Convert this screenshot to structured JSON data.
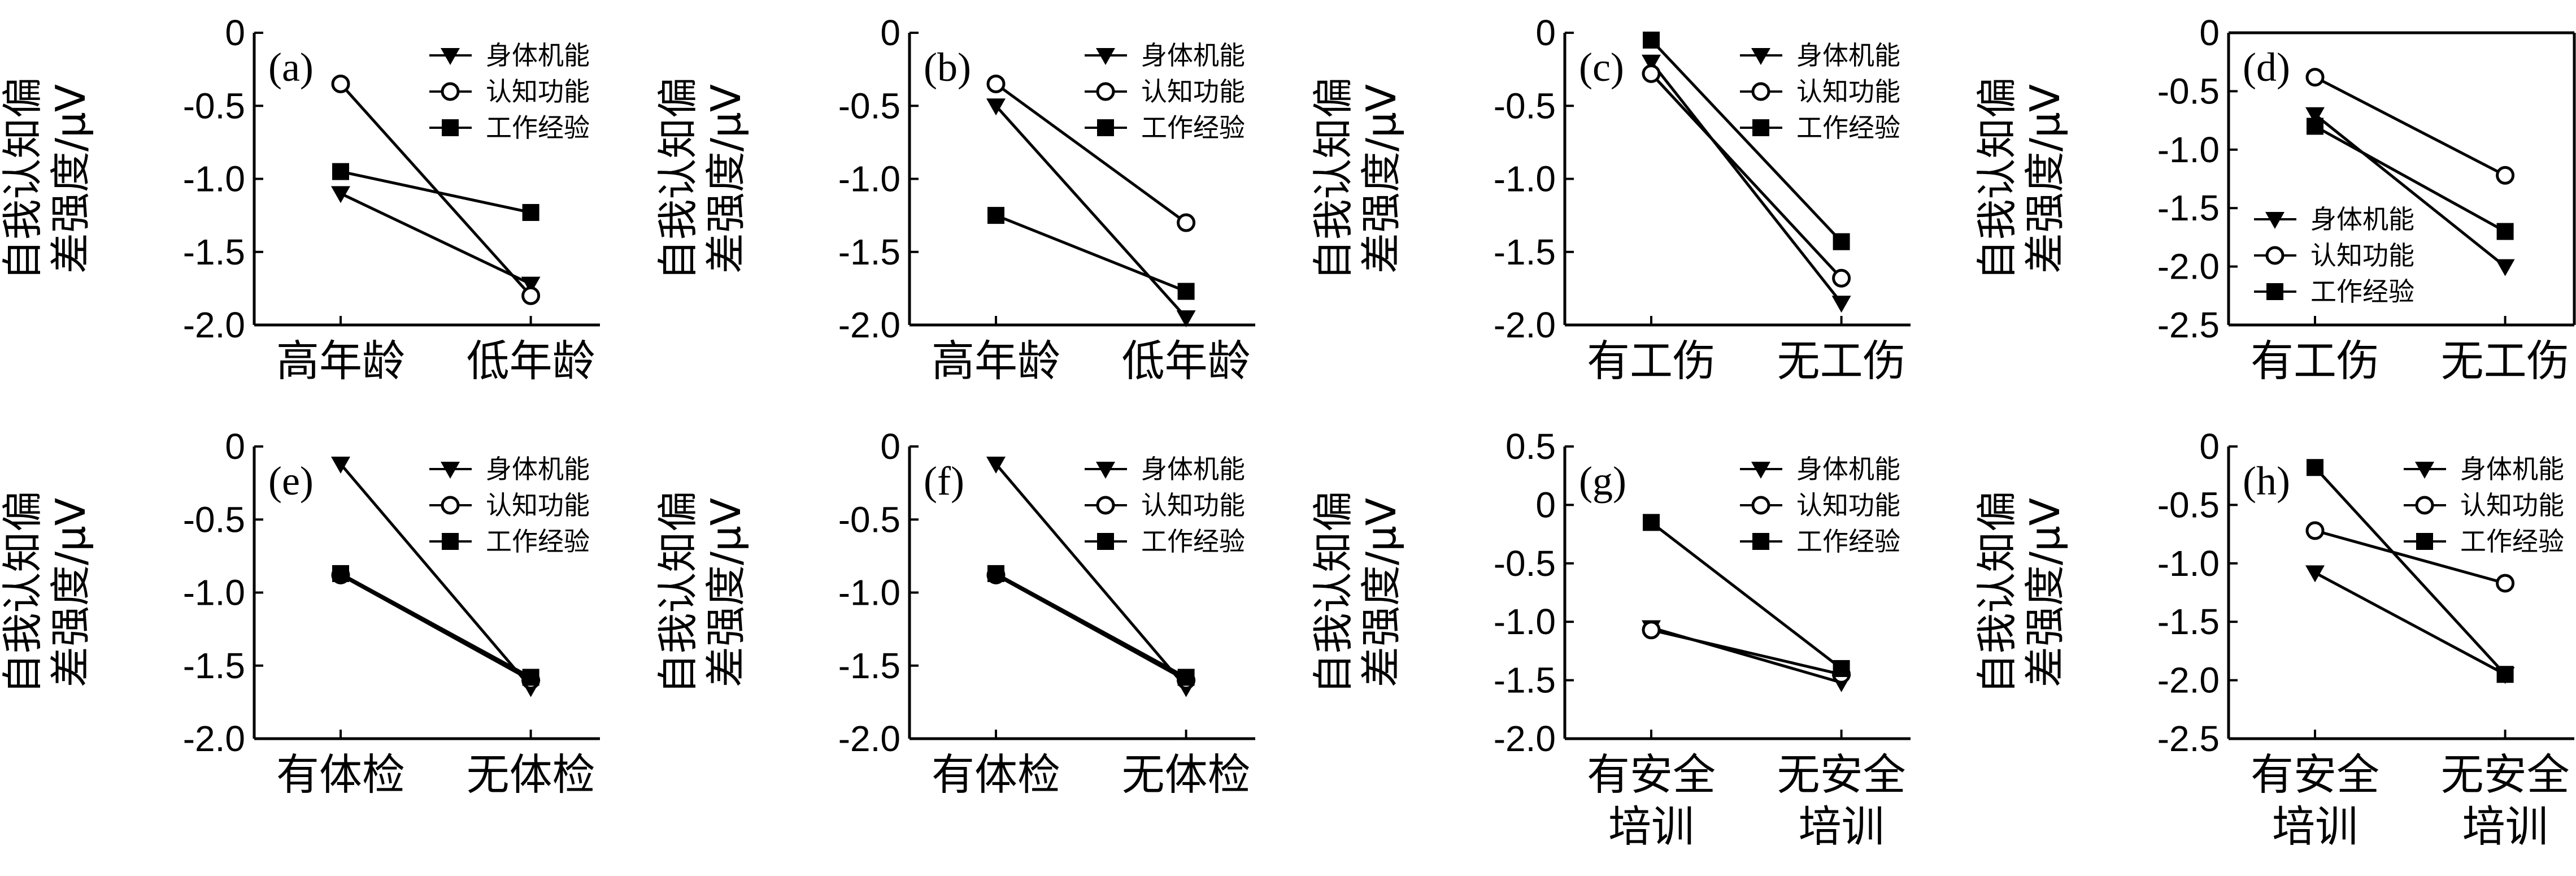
{
  "legend": {
    "s1": "身体机能",
    "s2": "认知功能",
    "s3": "工作经验"
  },
  "ylabel_line1": "自我认知偏",
  "ylabel_line2": "差强度/μV",
  "chart_data": [
    {
      "type": "line",
      "label": "(a)",
      "categories": [
        "高年龄",
        "低年龄"
      ],
      "ylim": [
        -2.0,
        0
      ],
      "ticks": [
        "0",
        "-0.5",
        "-1.0",
        "-1.5",
        "-2.0"
      ],
      "tick_values": [
        0,
        -0.5,
        -1.0,
        -1.5,
        -2.0
      ],
      "legend_position": "top-right",
      "series": [
        {
          "name": "身体机能",
          "values": [
            -1.1,
            -1.72
          ]
        },
        {
          "name": "认知功能",
          "values": [
            -0.35,
            -1.8
          ]
        },
        {
          "name": "工作经验",
          "values": [
            -0.95,
            -1.23
          ]
        }
      ]
    },
    {
      "type": "line",
      "label": "(b)",
      "categories": [
        "高年龄",
        "低年龄"
      ],
      "ylim": [
        -2.0,
        0
      ],
      "ticks": [
        "0",
        "-0.5",
        "-1.0",
        "-1.5",
        "-2.0"
      ],
      "tick_values": [
        0,
        -0.5,
        -1.0,
        -1.5,
        -2.0
      ],
      "legend_position": "top-right",
      "series": [
        {
          "name": "身体机能",
          "values": [
            -0.5,
            -1.95
          ]
        },
        {
          "name": "认知功能",
          "values": [
            -0.35,
            -1.3
          ]
        },
        {
          "name": "工作经验",
          "values": [
            -1.25,
            -1.77
          ]
        }
      ]
    },
    {
      "type": "line",
      "label": "(c)",
      "categories": [
        "有工伤",
        "无工伤"
      ],
      "ylim": [
        -2.0,
        0
      ],
      "ticks": [
        "0",
        "-0.5",
        "-1.0",
        "-1.5",
        "-2.0"
      ],
      "tick_values": [
        0,
        -0.5,
        -1.0,
        -1.5,
        -2.0
      ],
      "legend_position": "top-right",
      "series": [
        {
          "name": "身体机能",
          "values": [
            -0.2,
            -1.85
          ]
        },
        {
          "name": "认知功能",
          "values": [
            -0.28,
            -1.68
          ]
        },
        {
          "name": "工作经验",
          "values": [
            -0.05,
            -1.43
          ]
        }
      ]
    },
    {
      "type": "line",
      "label": "(d)",
      "categories": [
        "有工伤",
        "无工伤"
      ],
      "ylim": [
        -2.5,
        0
      ],
      "ticks": [
        "0",
        "-0.5",
        "-1.0",
        "-1.5",
        "-2.0",
        "-2.5"
      ],
      "tick_values": [
        0,
        -0.5,
        -1.0,
        -1.5,
        -2.0,
        -2.5
      ],
      "legend_position": "bottom-left",
      "series": [
        {
          "name": "身体机能",
          "values": [
            -0.7,
            -2.0
          ]
        },
        {
          "name": "认知功能",
          "values": [
            -0.38,
            -1.22
          ]
        },
        {
          "name": "工作经验",
          "values": [
            -0.8,
            -1.7
          ]
        }
      ]
    },
    {
      "type": "line",
      "label": "(e)",
      "categories": [
        "有体检",
        "无体检"
      ],
      "ylim": [
        -2.0,
        0
      ],
      "ticks": [
        "0",
        "-0.5",
        "-1.0",
        "-1.5",
        "-2.0"
      ],
      "tick_values": [
        0,
        -0.5,
        -1.0,
        -1.5,
        -2.0
      ],
      "legend_position": "top-right",
      "series": [
        {
          "name": "身体机能",
          "values": [
            -0.12,
            -1.65
          ]
        },
        {
          "name": "认知功能",
          "values": [
            -0.88,
            -1.6
          ]
        },
        {
          "name": "工作经验",
          "values": [
            -0.87,
            -1.58
          ]
        }
      ]
    },
    {
      "type": "line",
      "label": "(f)",
      "categories": [
        "有体检",
        "无体检"
      ],
      "ylim": [
        -2.0,
        0
      ],
      "ticks": [
        "0",
        "-0.5",
        "-1.0",
        "-1.5",
        "-2.0"
      ],
      "tick_values": [
        0,
        -0.5,
        -1.0,
        -1.5,
        -2.0
      ],
      "legend_position": "top-right",
      "series": [
        {
          "name": "身体机能",
          "values": [
            -0.12,
            -1.65
          ]
        },
        {
          "name": "认知功能",
          "values": [
            -0.88,
            -1.6
          ]
        },
        {
          "name": "工作经验",
          "values": [
            -0.87,
            -1.58
          ]
        }
      ]
    },
    {
      "type": "line",
      "label": "(g)",
      "categories": [
        "有安全\n培训",
        "无安全\n培训"
      ],
      "ylim": [
        -2.0,
        0.5
      ],
      "ticks": [
        "0.5",
        "0",
        "-0.5",
        "-1.0",
        "-1.5",
        "-2.0"
      ],
      "tick_values": [
        0.5,
        0,
        -0.5,
        -1.0,
        -1.5,
        -2.0
      ],
      "legend_position": "top-right",
      "series": [
        {
          "name": "身体机能",
          "values": [
            -1.05,
            -1.52
          ]
        },
        {
          "name": "认知功能",
          "values": [
            -1.07,
            -1.45
          ]
        },
        {
          "name": "工作经验",
          "values": [
            -0.15,
            -1.4
          ]
        }
      ]
    },
    {
      "type": "line",
      "label": "(h)",
      "categories": [
        "有安全\n培训",
        "无安全\n培训"
      ],
      "ylim": [
        -2.5,
        0
      ],
      "ticks": [
        "0",
        "-0.5",
        "-1.0",
        "-1.5",
        "-2.0",
        "-2.5"
      ],
      "tick_values": [
        0,
        -0.5,
        -1.0,
        -1.5,
        -2.0,
        -2.5
      ],
      "legend_position": "top-right",
      "series": [
        {
          "name": "身体机能",
          "values": [
            -1.08,
            -1.95
          ]
        },
        {
          "name": "认知功能",
          "values": [
            -0.72,
            -1.17
          ]
        },
        {
          "name": "工作经验",
          "values": [
            -0.18,
            -1.95
          ]
        }
      ]
    }
  ]
}
